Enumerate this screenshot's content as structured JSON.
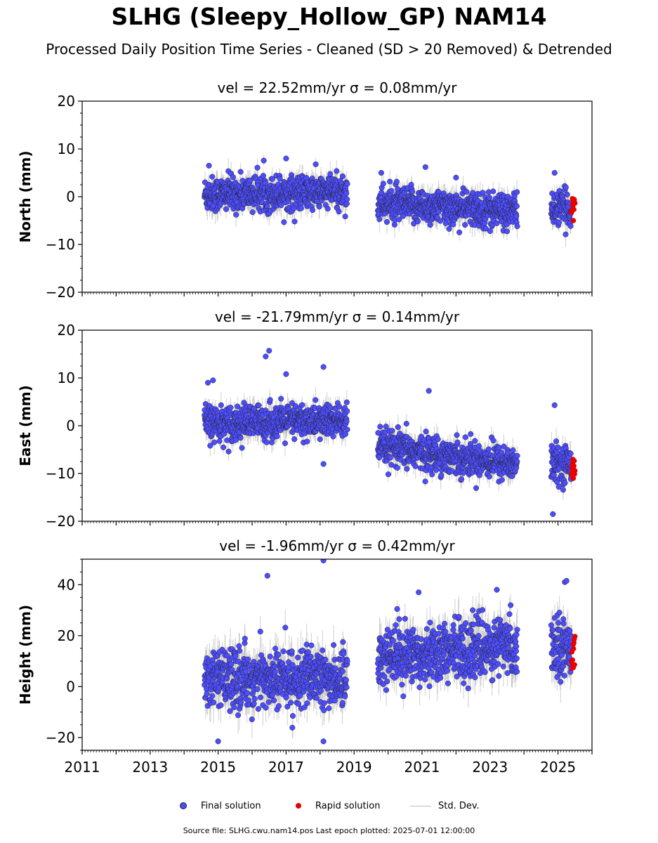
{
  "title": "SLHG (Sleepy_Hollow_GP) NAM14",
  "subtitle": "Processed Daily Position Time Series - Cleaned (SD > 20 Removed) & Detrended",
  "legend": {
    "final_label": "Final solution",
    "rapid_label": "Rapid solution",
    "std_label": "Std. Dev."
  },
  "footer": "Source file: SLHG.cwu.nam14.pos  Last epoch plotted: 2025-07-01 12:00:00",
  "colors": {
    "final": "#4d4dff",
    "rapid": "#e60000",
    "std": "#bbbbbb"
  },
  "chart_data": [
    {
      "type": "scatter",
      "panel": "north",
      "title": "vel = 22.52mm/yr   σ = 0.08mm/yr",
      "ylabel": "North (mm)",
      "xlim": [
        2011,
        2026
      ],
      "ylim": [
        -20,
        20
      ],
      "yticks": [
        -20,
        -10,
        0,
        10,
        20
      ],
      "xticks": [
        2011,
        2013,
        2015,
        2017,
        2019,
        2021,
        2023,
        2025
      ],
      "series": [
        {
          "name": "Final solution",
          "segments": [
            {
              "x_start": 2014.6,
              "x_end": 2018.8,
              "y_start": 0.5,
              "y_end": 1.0
            },
            {
              "x_start": 2019.7,
              "x_end": 2023.8,
              "y_start": -1.5,
              "y_end": -3.0
            },
            {
              "x_start": 2024.8,
              "x_end": 2025.4,
              "y_start": -2.5,
              "y_end": -2.5
            }
          ]
        },
        {
          "name": "Rapid solution",
          "segments": [
            {
              "x_start": 2025.4,
              "x_end": 2025.5,
              "y_start": -2.0,
              "y_end": -2.0
            }
          ]
        }
      ],
      "outliers": [
        [
          2014.73,
          6.5
        ],
        [
          2017.0,
          8.0
        ],
        [
          2019.8,
          5.0
        ],
        [
          2021.1,
          6.2
        ],
        [
          2022.0,
          4.0
        ],
        [
          2024.9,
          5.0
        ],
        [
          2023.0,
          -7.2
        ],
        [
          2025.45,
          -5.0
        ]
      ]
    },
    {
      "type": "scatter",
      "panel": "east",
      "title": "vel = -21.79mm/yr   σ = 0.14mm/yr",
      "ylabel": "East (mm)",
      "xlim": [
        2011,
        2026
      ],
      "ylim": [
        -20,
        20
      ],
      "yticks": [
        -20,
        -10,
        0,
        10,
        20
      ],
      "xticks": [
        2011,
        2013,
        2015,
        2017,
        2019,
        2021,
        2023,
        2025
      ],
      "series": [
        {
          "name": "Final solution",
          "segments": [
            {
              "x_start": 2014.6,
              "x_end": 2018.8,
              "y_start": 0.5,
              "y_end": 1.0
            },
            {
              "x_start": 2019.7,
              "x_end": 2023.8,
              "y_start": -4.5,
              "y_end": -8.0
            },
            {
              "x_start": 2024.8,
              "x_end": 2025.4,
              "y_start": -8.0,
              "y_end": -8.0
            }
          ]
        },
        {
          "name": "Rapid solution",
          "segments": [
            {
              "x_start": 2025.4,
              "x_end": 2025.5,
              "y_start": -8.5,
              "y_end": -8.5
            }
          ]
        }
      ],
      "outliers": [
        [
          2014.7,
          9.0
        ],
        [
          2014.85,
          9.5
        ],
        [
          2016.4,
          14.5
        ],
        [
          2016.5,
          15.7
        ],
        [
          2017.0,
          10.8
        ],
        [
          2018.1,
          12.3
        ],
        [
          2018.1,
          -8.0
        ],
        [
          2021.2,
          7.3
        ],
        [
          2024.9,
          4.3
        ],
        [
          2024.85,
          -18.5
        ],
        [
          2025.45,
          -11.0
        ]
      ]
    },
    {
      "type": "scatter",
      "panel": "height",
      "title": "vel = -1.96mm/yr   σ = 0.42mm/yr",
      "ylabel": "Height (mm)",
      "xlim": [
        2011,
        2026
      ],
      "ylim": [
        -25,
        50
      ],
      "yticks": [
        -20,
        0,
        20,
        40
      ],
      "xticks": [
        2011,
        2013,
        2015,
        2017,
        2019,
        2021,
        2023,
        2025
      ],
      "series": [
        {
          "name": "Final solution",
          "segments": [
            {
              "x_start": 2014.6,
              "x_end": 2018.8,
              "y_start": 3.0,
              "y_end": 3.0
            },
            {
              "x_start": 2019.7,
              "x_end": 2023.8,
              "y_start": 12.0,
              "y_end": 16.0
            },
            {
              "x_start": 2024.8,
              "x_end": 2025.4,
              "y_start": 16.0,
              "y_end": 16.0
            }
          ]
        },
        {
          "name": "Rapid solution",
          "segments": [
            {
              "x_start": 2025.4,
              "x_end": 2025.5,
              "y_start": 14.0,
              "y_end": 14.0
            }
          ]
        }
      ],
      "outliers": [
        [
          2016.45,
          43.5
        ],
        [
          2018.1,
          49.5
        ],
        [
          2018.1,
          -21.5
        ],
        [
          2015.0,
          -21.5
        ],
        [
          2020.9,
          37.0
        ],
        [
          2023.2,
          38.0
        ],
        [
          2025.2,
          41.0
        ],
        [
          2025.25,
          41.5
        ],
        [
          2025.45,
          7.5
        ]
      ]
    }
  ]
}
